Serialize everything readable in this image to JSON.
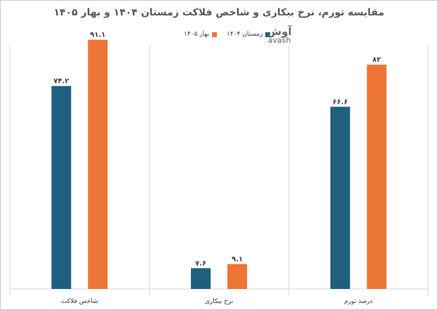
{
  "title": "مقایسه تورم، نرخ بیکاری و شاخص فلاکت زمستان ۱۴۰۴ و بهار ۱۴۰۵",
  "logo": {
    "main": "آوش",
    "sub": "avash"
  },
  "chart_data": {
    "type": "bar",
    "title": "مقایسه تورم، نرخ بیکاری و شاخص فلاکت زمستان ۱۴۰۴ و بهار ۱۴۰۵",
    "categories": [
      "درصد تورم",
      "نرخ بیکاری",
      "شاخص فلاکت"
    ],
    "series": [
      {
        "name": "زمستان ۱۴۰۴",
        "color": "#1f5f80",
        "values": [
          66.6,
          7.6,
          74.2
        ],
        "labels": [
          "۶۶.۶",
          "۷.۶",
          "۷۴.۲"
        ]
      },
      {
        "name": "بهار ۱۴۰۵",
        "color": "#ed7535",
        "values": [
          82,
          9.1,
          91.1
        ],
        "labels": [
          "۸۲",
          "۹.۱",
          "۹۱.۱"
        ]
      }
    ],
    "xlabel": "",
    "ylabel": "",
    "ylim": [
      0,
      100
    ],
    "grid": false,
    "legend": "top-center"
  }
}
